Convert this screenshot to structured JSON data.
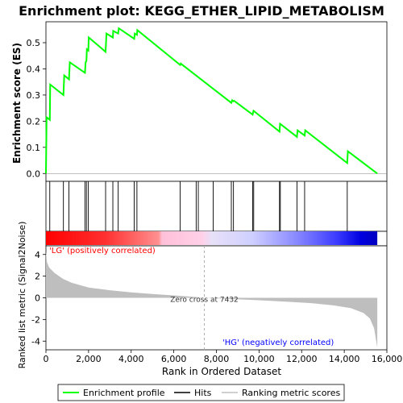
{
  "chart_data": {
    "type": "line",
    "title": "Enrichment plot: KEGG_ETHER_LIPID_METABOLISM",
    "top_panel": {
      "ylabel": "Enrichment score (ES)",
      "ylim": [
        -0.03,
        0.58
      ],
      "yticks": [
        "0.0",
        "0.1",
        "0.2",
        "0.3",
        "0.4",
        "0.5"
      ],
      "series_name": "Enrichment profile",
      "color": "#00ff00",
      "points": [
        [
          0,
          0.0
        ],
        [
          30,
          0.215
        ],
        [
          180,
          0.205
        ],
        [
          200,
          0.34
        ],
        [
          820,
          0.3
        ],
        [
          860,
          0.375
        ],
        [
          1080,
          0.36
        ],
        [
          1120,
          0.425
        ],
        [
          1830,
          0.385
        ],
        [
          1860,
          0.425
        ],
        [
          1900,
          0.43
        ],
        [
          1920,
          0.475
        ],
        [
          1990,
          0.47
        ],
        [
          2010,
          0.52
        ],
        [
          2800,
          0.465
        ],
        [
          2840,
          0.535
        ],
        [
          3140,
          0.52
        ],
        [
          3160,
          0.545
        ],
        [
          3390,
          0.535
        ],
        [
          3420,
          0.555
        ],
        [
          4140,
          0.515
        ],
        [
          4170,
          0.535
        ],
        [
          4270,
          0.53
        ],
        [
          4290,
          0.548
        ],
        [
          6300,
          0.415
        ],
        [
          6330,
          0.42
        ],
        [
          8700,
          0.27
        ],
        [
          8740,
          0.28
        ],
        [
          8800,
          0.276
        ],
        [
          8830,
          0.278
        ],
        [
          9700,
          0.225
        ],
        [
          9740,
          0.24
        ],
        [
          10960,
          0.16
        ],
        [
          10990,
          0.19
        ],
        [
          11780,
          0.14
        ],
        [
          11810,
          0.165
        ],
        [
          12140,
          0.145
        ],
        [
          12170,
          0.165
        ],
        [
          14140,
          0.04
        ],
        [
          14170,
          0.085
        ],
        [
          15550,
          0.0
        ]
      ]
    },
    "hits_panel": {
      "hit_positions": [
        180,
        820,
        1080,
        1830,
        1900,
        1990,
        2800,
        3140,
        3390,
        4140,
        4270,
        6300,
        7050,
        7150,
        7850,
        8700,
        8800,
        9700,
        9750,
        10960,
        11000,
        11780,
        12140,
        14140
      ]
    },
    "rank_panel": {
      "ylabel": "Ranked list metric (Signal2Noise)",
      "xlabel": "Rank in Ordered Dataset",
      "ylim": [
        -4.8,
        4.8
      ],
      "yticks": [
        "-4",
        "-2",
        "0",
        "2",
        "4"
      ],
      "xticks": [
        "0",
        "2,000",
        "4,000",
        "6,000",
        "8,000",
        "10,000",
        "12,000",
        "14,000",
        "16,000"
      ],
      "xlim": [
        0,
        16000
      ],
      "n_genes": 15550,
      "zero_cross": 7432,
      "zero_cross_label": "Zero cross at 7432",
      "pos_label": "'LG' (positively correlated)",
      "neg_label": "'HG' (negatively correlated)",
      "metric_profile": [
        [
          0,
          4.3
        ],
        [
          50,
          3.3
        ],
        [
          150,
          2.8
        ],
        [
          400,
          2.3
        ],
        [
          800,
          1.75
        ],
        [
          1200,
          1.4
        ],
        [
          2000,
          0.95
        ],
        [
          3000,
          0.7
        ],
        [
          4000,
          0.5
        ],
        [
          5000,
          0.35
        ],
        [
          6000,
          0.22
        ],
        [
          7000,
          0.08
        ],
        [
          7432,
          0.0
        ],
        [
          8500,
          -0.1
        ],
        [
          10000,
          -0.22
        ],
        [
          11500,
          -0.38
        ],
        [
          12500,
          -0.5
        ],
        [
          13500,
          -0.7
        ],
        [
          14300,
          -0.95
        ],
        [
          14900,
          -1.4
        ],
        [
          15200,
          -1.9
        ],
        [
          15400,
          -2.8
        ],
        [
          15500,
          -4.0
        ],
        [
          15550,
          -4.6
        ]
      ]
    },
    "legend": {
      "items": [
        {
          "label": "Enrichment profile",
          "color": "#00ff00"
        },
        {
          "label": "Hits",
          "color": "#000000"
        },
        {
          "label": "Ranking metric scores",
          "color": "#c0c0c0"
        }
      ]
    },
    "colors": {
      "pos_text": "#ff0000",
      "neg_text": "#0000ff",
      "fill": "#bebebe"
    }
  }
}
